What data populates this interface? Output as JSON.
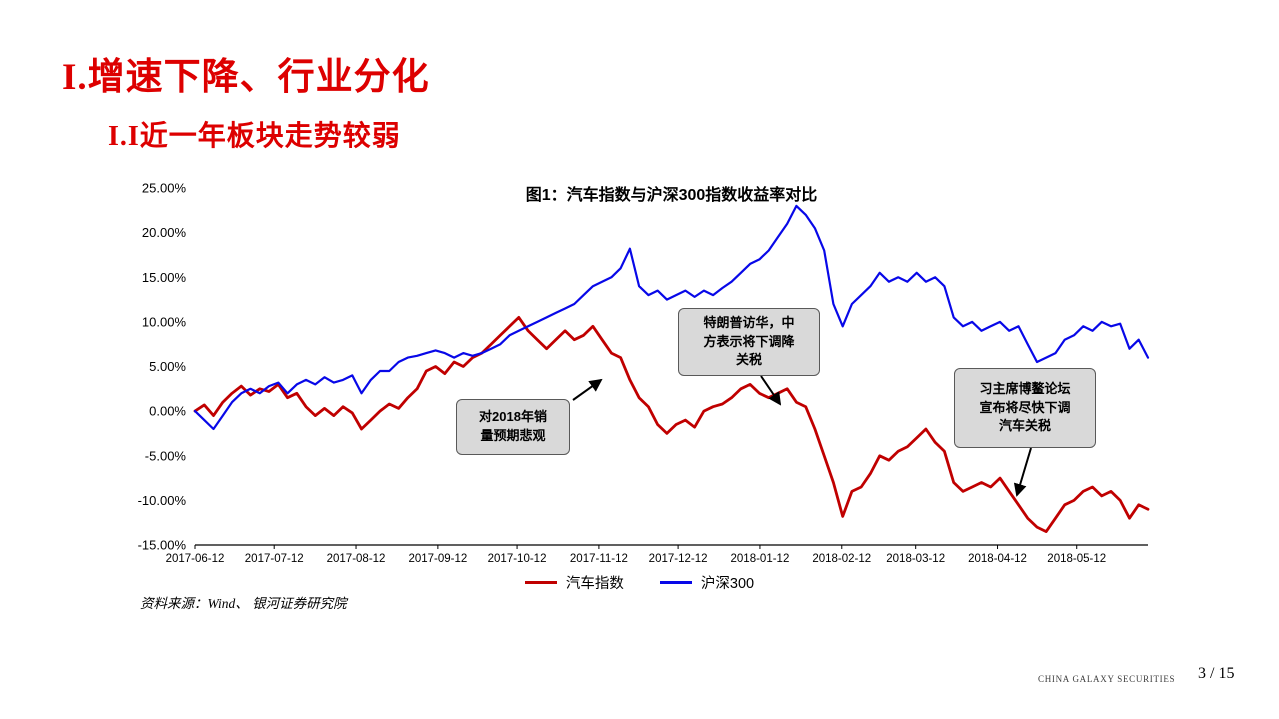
{
  "slide": {
    "title": "I.增速下降、行业分化",
    "subtitle": "I.I近一年板块走势较弱",
    "source": "资料来源：Wind、 银河证券研究院",
    "footer_brand": "CHINA GALAXY SECURITIES",
    "page_number": "3 / 15"
  },
  "annotations": [
    {
      "text": "对2018年销\n量预期悲观"
    },
    {
      "text": "特朗普访华，中\n方表示将下调降\n关税"
    },
    {
      "text": "习主席博鳌论坛\n宣布将尽快下调\n汽车关税"
    }
  ],
  "chart_data": {
    "type": "line",
    "title": "图1：汽车指数与沪深300指数收益率对比",
    "xlabel": "",
    "ylabel": "",
    "grid": false,
    "legend_position": "bottom",
    "ylim": [
      -15,
      25
    ],
    "y_ticks": [
      25,
      20,
      15,
      10,
      5,
      0,
      -5,
      -10,
      -15
    ],
    "y_tick_labels": [
      "25.00%",
      "20.00%",
      "15.00%",
      "10.00%",
      "5.00%",
      "0.00%",
      "-5.00%",
      "-10.00%",
      "-15.00%"
    ],
    "x_tick_labels": [
      "2017-06-12",
      "2017-07-12",
      "2017-08-12",
      "2017-09-12",
      "2017-10-12",
      "2017-11-12",
      "2017-12-12",
      "2018-01-12",
      "2018-02-12",
      "2018-03-12",
      "2018-04-12",
      "2018-05-12"
    ],
    "x_tick_days": [
      0,
      30,
      61,
      92,
      122,
      153,
      183,
      214,
      245,
      273,
      304,
      334
    ],
    "total_days": 361,
    "series": [
      {
        "name": "汽车指数",
        "color": "#c00000",
        "width": 2.8,
        "values": [
          0,
          0.7,
          -0.5,
          1,
          2,
          2.8,
          1.8,
          2.5,
          2.2,
          3,
          1.5,
          2,
          0.5,
          -0.5,
          0.3,
          -0.5,
          0.5,
          -0.2,
          -2,
          -1,
          0,
          0.8,
          0.3,
          1.5,
          2.5,
          4.5,
          5,
          4.2,
          5.5,
          5,
          6,
          6.5,
          7.5,
          8.5,
          9.5,
          10.5,
          9,
          8,
          7,
          8,
          9,
          8,
          8.5,
          9.5,
          8,
          6.5,
          6,
          3.5,
          1.5,
          0.5,
          -1.5,
          -2.5,
          -1.5,
          -1,
          -1.8,
          0,
          0.5,
          0.8,
          1.5,
          2.5,
          3,
          2,
          1.5,
          2,
          2.5,
          1,
          0.5,
          -2,
          -5,
          -8,
          -11.8,
          -9,
          -8.5,
          -7,
          -5,
          -5.5,
          -4.5,
          -4,
          -3,
          -2,
          -3.5,
          -4.5,
          -8,
          -9,
          -8.5,
          -8,
          -8.5,
          -7.5,
          -9,
          -10.5,
          -12,
          -13,
          -13.5,
          -12,
          -10.5,
          -10,
          -9,
          -8.5,
          -9.5,
          -9,
          -10,
          -12,
          -10.5,
          -11
        ]
      },
      {
        "name": "沪深300",
        "color": "#0808e8",
        "width": 2.2,
        "values": [
          0,
          -1,
          -2,
          -0.5,
          1,
          2,
          2.5,
          2,
          2.8,
          3.2,
          2,
          3,
          3.5,
          3,
          3.8,
          3.2,
          3.5,
          4,
          2,
          3.5,
          4.5,
          4.5,
          5.5,
          6,
          6.2,
          6.5,
          6.8,
          6.5,
          6,
          6.5,
          6.2,
          6.5,
          7,
          7.5,
          8.5,
          9,
          9.5,
          10,
          10.5,
          11,
          11.5,
          12,
          13,
          14,
          14.5,
          15,
          16,
          18.2,
          14,
          13,
          13.5,
          12.5,
          13,
          13.5,
          12.8,
          13.5,
          13,
          13.8,
          14.5,
          15.5,
          16.5,
          17,
          18,
          19.5,
          21,
          23,
          22,
          20.5,
          18,
          12,
          9.5,
          12,
          13,
          14,
          15.5,
          14.5,
          15,
          14.5,
          15.5,
          14.5,
          15,
          14,
          10.5,
          9.5,
          10,
          9,
          9.5,
          10,
          9,
          9.5,
          7.5,
          5.5,
          6,
          6.5,
          8,
          8.5,
          9.5,
          9,
          10,
          9.5,
          9.8,
          7,
          8,
          6
        ]
      }
    ]
  }
}
